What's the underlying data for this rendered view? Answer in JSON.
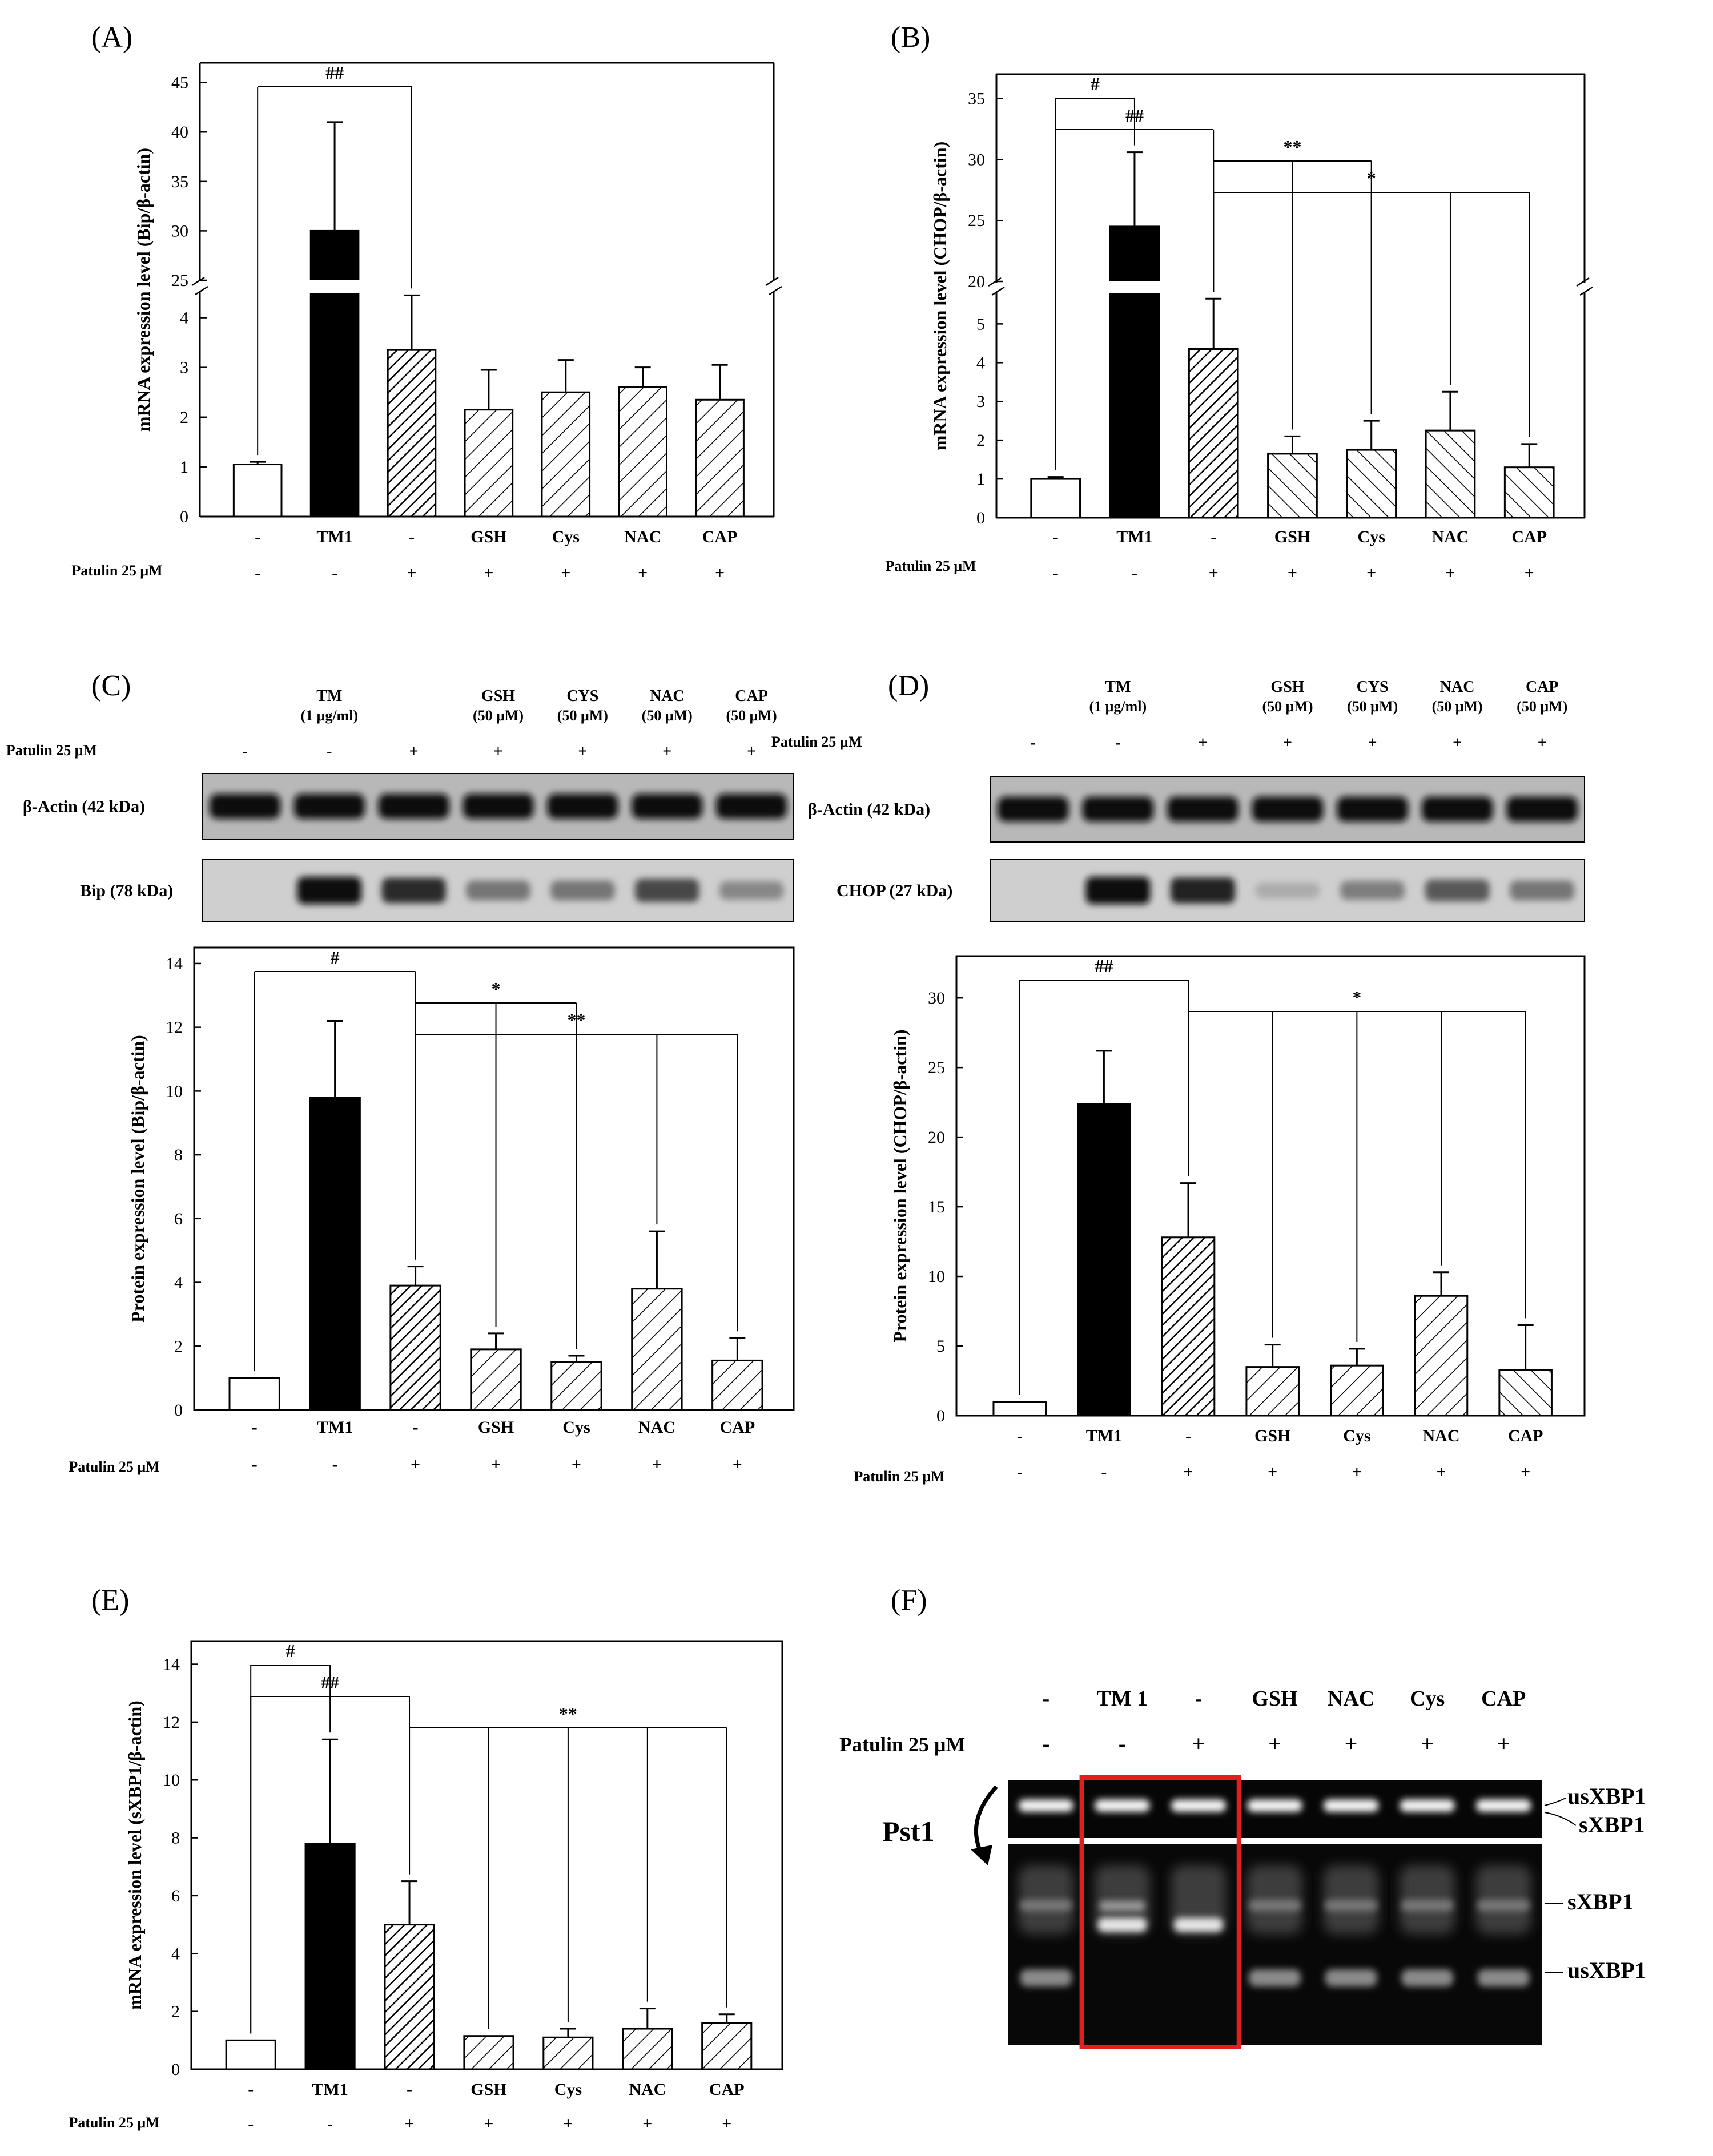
{
  "figure": {
    "panel_labels": [
      "(A)",
      "(B)",
      "(C)",
      "(D)",
      "(E)",
      "(F)"
    ],
    "row_label": "Patulin 25 μM",
    "groups": [
      "-",
      "TM1",
      "-",
      "GSH",
      "Cys",
      "NAC",
      "CAP"
    ],
    "patulin": [
      "-",
      "-",
      "+",
      "+",
      "+",
      "+",
      "+"
    ]
  },
  "chart_data": [
    {
      "panel": "(A)",
      "type": "bar",
      "title": "",
      "ylabel": "mRNA expression level (Bip/β-actin)",
      "categories": [
        "-",
        "TM1",
        "-",
        "GSH",
        "Cys",
        "NAC",
        "CAP"
      ],
      "patulin_row": [
        "-",
        "-",
        "+",
        "+",
        "+",
        "+",
        "+"
      ],
      "values": [
        1.05,
        30.0,
        3.35,
        2.15,
        2.5,
        2.6,
        2.35
      ],
      "errors": [
        0.05,
        11.0,
        1.1,
        0.8,
        0.65,
        0.4,
        0.7
      ],
      "fills": [
        "white",
        "black",
        "dense",
        "sparse",
        "sparse",
        "sparse",
        "sparse"
      ],
      "axis_break": true,
      "lower_ylim": [
        0,
        4.5
      ],
      "lower_ticks": [
        0,
        1,
        2,
        3,
        4
      ],
      "upper_ylim": [
        25,
        47
      ],
      "upper_ticks": [
        25,
        30,
        35,
        40,
        45
      ],
      "annotations": [
        {
          "label": "##",
          "from": 0,
          "to": 2
        }
      ]
    },
    {
      "panel": "(B)",
      "type": "bar",
      "title": "",
      "ylabel": "mRNA expression level (CHOP/β-actin)",
      "categories": [
        "-",
        "TM1",
        "-",
        "GSH",
        "Cys",
        "NAC",
        "CAP"
      ],
      "patulin_row": [
        "-",
        "-",
        "+",
        "+",
        "+",
        "+",
        "+"
      ],
      "values": [
        1.0,
        24.5,
        4.35,
        1.65,
        1.75,
        2.25,
        1.3
      ],
      "errors": [
        0.05,
        6.1,
        1.3,
        0.45,
        0.75,
        1.0,
        0.6
      ],
      "fills": [
        "white",
        "black",
        "dense",
        "sparse-r",
        "sparse-r",
        "sparse-r",
        "sparse-r"
      ],
      "axis_break": true,
      "lower_ylim": [
        0,
        5.8
      ],
      "lower_ticks": [
        0,
        1,
        2,
        3,
        4,
        5
      ],
      "upper_ylim": [
        20,
        37
      ],
      "upper_ticks": [
        20,
        25,
        30,
        35
      ],
      "annotations": [
        {
          "label": "#",
          "from": 0,
          "to": 1
        },
        {
          "label": "##",
          "from": 0,
          "to": 2
        },
        {
          "label": "**",
          "from": 2,
          "to": 4
        },
        {
          "label": "*",
          "from": 2,
          "to": 6
        }
      ]
    },
    {
      "panel": "(C)",
      "type": "bar",
      "title": "",
      "ylabel": "Protein expression level (Bip/β-actin)",
      "categories": [
        "-",
        "TM1",
        "-",
        "GSH",
        "Cys",
        "NAC",
        "CAP"
      ],
      "patulin_row": [
        "-",
        "-",
        "+",
        "+",
        "+",
        "+",
        "+"
      ],
      "values": [
        1.0,
        9.8,
        3.9,
        1.9,
        1.5,
        3.8,
        1.55
      ],
      "errors": [
        0.0,
        2.4,
        0.6,
        0.5,
        0.2,
        1.8,
        0.7
      ],
      "fills": [
        "white",
        "black",
        "dense",
        "sparse",
        "sparse",
        "sparse",
        "sparse"
      ],
      "ylim": [
        0,
        14.5
      ],
      "ticks": [
        0,
        2,
        4,
        6,
        8,
        10,
        12,
        14
      ],
      "annotations": [
        {
          "label": "#",
          "from": 0,
          "to": 2
        },
        {
          "label": "*",
          "from": 2,
          "to": 4
        },
        {
          "label": "**",
          "from": 2,
          "to": 6
        }
      ]
    },
    {
      "panel": "(D)",
      "type": "bar",
      "title": "",
      "ylabel": "Protein expression level (CHOP/β-actin)",
      "categories": [
        "-",
        "TM1",
        "-",
        "GSH",
        "Cys",
        "NAC",
        "CAP"
      ],
      "patulin_row": [
        "-",
        "-",
        "+",
        "+",
        "+",
        "+",
        "+"
      ],
      "values": [
        1.0,
        22.4,
        12.8,
        3.5,
        3.6,
        8.6,
        3.3
      ],
      "errors": [
        0.0,
        3.8,
        3.9,
        1.6,
        1.2,
        1.7,
        3.2
      ],
      "fills": [
        "white",
        "black",
        "dense",
        "sparse",
        "sparse",
        "sparse",
        "sparse-r"
      ],
      "ylim": [
        0,
        33
      ],
      "ticks": [
        0,
        5,
        10,
        15,
        20,
        25,
        30
      ],
      "annotations": [
        {
          "label": "##",
          "from": 0,
          "to": 2
        },
        {
          "label": "*",
          "from": 2,
          "to": 6
        }
      ]
    },
    {
      "panel": "(E)",
      "type": "bar",
      "title": "",
      "ylabel": "mRNA expression level (sXBP1/β-actin)",
      "categories": [
        "-",
        "TM1",
        "-",
        "GSH",
        "Cys",
        "NAC",
        "CAP"
      ],
      "patulin_row": [
        "-",
        "-",
        "+",
        "+",
        "+",
        "+",
        "+"
      ],
      "values": [
        1.0,
        7.8,
        5.0,
        1.15,
        1.1,
        1.4,
        1.6
      ],
      "errors": [
        0.0,
        3.6,
        1.5,
        0.0,
        0.3,
        0.7,
        0.3
      ],
      "fills": [
        "white",
        "black",
        "dense",
        "sparse",
        "sparse",
        "sparse",
        "sparse"
      ],
      "ylim": [
        0,
        14.8
      ],
      "ticks": [
        0,
        2,
        4,
        6,
        8,
        10,
        12,
        14
      ],
      "annotations": [
        {
          "label": "#",
          "from": 0,
          "to": 1
        },
        {
          "label": "##",
          "from": 0,
          "to": 2
        },
        {
          "label": "**",
          "from": 2,
          "to": 6
        }
      ]
    }
  ],
  "blots": {
    "C": {
      "treatments": [
        {
          "name": "",
          "dose": ""
        },
        {
          "name": "TM",
          "dose": "(1 μg/ml)"
        },
        {
          "name": "",
          "dose": ""
        },
        {
          "name": "GSH",
          "dose": "(50 μM)"
        },
        {
          "name": "CYS",
          "dose": "(50 μM)"
        },
        {
          "name": "NAC",
          "dose": "(50 μM)"
        },
        {
          "name": "CAP",
          "dose": "(50 μM)"
        }
      ],
      "patulin": [
        "-",
        "-",
        "+",
        "+",
        "+",
        "+",
        "+"
      ],
      "loading_label": "β-Actin (42 kDa)",
      "target_label": "Bip (78 kDa)",
      "target_intensity": [
        0,
        1.0,
        0.85,
        0.45,
        0.45,
        0.7,
        0.35
      ]
    },
    "D": {
      "treatments": [
        {
          "name": "",
          "dose": ""
        },
        {
          "name": "TM",
          "dose": "(1 μg/ml)"
        },
        {
          "name": "",
          "dose": ""
        },
        {
          "name": "GSH",
          "dose": "(50 μM)"
        },
        {
          "name": "CYS",
          "dose": "(50 μM)"
        },
        {
          "name": "NAC",
          "dose": "(50 μM)"
        },
        {
          "name": "CAP",
          "dose": "(50 μM)"
        }
      ],
      "patulin": [
        "-",
        "-",
        "+",
        "+",
        "+",
        "+",
        "+"
      ],
      "loading_label": "β-Actin (42 kDa)",
      "target_label": "CHOP (27 kDa)",
      "target_intensity": [
        0,
        1.0,
        0.9,
        0.15,
        0.4,
        0.6,
        0.45
      ]
    }
  },
  "gel": {
    "lanes": [
      "-",
      "TM 1",
      "-",
      "GSH",
      "NAC",
      "Cys",
      "CAP"
    ],
    "patulin": [
      "-",
      "-",
      "+",
      "+",
      "+",
      "+",
      "+"
    ],
    "enzyme": "Pst1",
    "top_labels": [
      "usXBP1",
      "sXBP1"
    ],
    "bottom_labels": [
      "sXBP1",
      "usXBP1"
    ],
    "highlight_color": "#e0201f"
  }
}
